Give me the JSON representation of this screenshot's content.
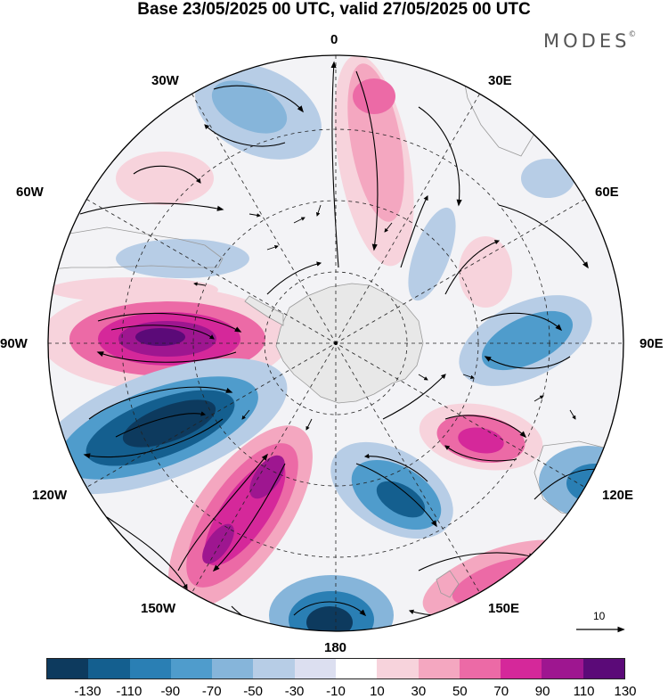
{
  "title": "Base 23/05/2025 00 UTC, valid 27/05/2025 00 UTC",
  "brand": {
    "name": "MODES",
    "mark": "©"
  },
  "longitude_labels": [
    "0",
    "30E",
    "60E",
    "90E",
    "120E",
    "150E",
    "180",
    "150W",
    "120W",
    "90W",
    "60W",
    "30W"
  ],
  "colorbar": {
    "ticks": [
      "-130",
      "-110",
      "-90",
      "-70",
      "-50",
      "-30",
      "-10",
      "10",
      "30",
      "50",
      "70",
      "90",
      "110",
      "130"
    ],
    "colors": [
      "#0d3a5e",
      "#145f8f",
      "#2a7fb4",
      "#4f9ccc",
      "#86b5da",
      "#b7cde6",
      "#dcdff0",
      "#ffffff",
      "#f7d3dc",
      "#f4a7c0",
      "#ec6aa6",
      "#d5289a",
      "#9e1690",
      "#5b0a78"
    ]
  },
  "reference_vector": {
    "label": "10"
  },
  "map": {
    "continent_color": "#e8e8e8",
    "anomaly_centers": [
      {
        "sign": "positive",
        "level": 130,
        "region": "90W"
      },
      {
        "sign": "negative",
        "level": -130,
        "region": "110W"
      },
      {
        "sign": "positive",
        "level": 110,
        "region": "135W"
      },
      {
        "sign": "negative",
        "level": -90,
        "region": "165E"
      },
      {
        "sign": "negative",
        "level": -130,
        "region": "180"
      },
      {
        "sign": "positive",
        "level": 90,
        "region": "110E"
      },
      {
        "sign": "negative",
        "level": -70,
        "region": "80E"
      },
      {
        "sign": "positive",
        "level": 70,
        "region": "10E"
      },
      {
        "sign": "negative",
        "level": -70,
        "region": "25W"
      }
    ]
  }
}
